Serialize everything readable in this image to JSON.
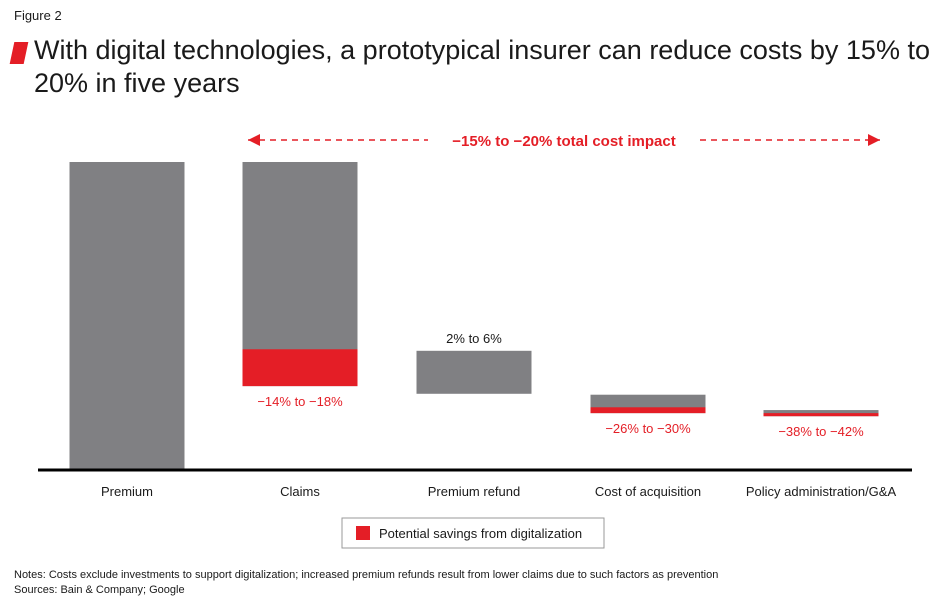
{
  "figure_label": "Figure 2",
  "title": "With digital technologies, a prototypical insurer can reduce costs by 15% to 20% in five years",
  "notes": "Notes: Costs exclude investments to support digitalization; increased premium refunds result from lower claims due to such factors as prevention",
  "sources": "Sources: Bain & Company; Google",
  "colors": {
    "gray": "#808083",
    "red": "#e41e26",
    "axis": "#000000",
    "text": "#1a1a1a"
  },
  "chart_data": {
    "type": "bar",
    "categories": [
      "Premium",
      "Claims",
      "Premium refund",
      "Cost of acquisition",
      "Policy administration/G&A"
    ],
    "baseline": 0,
    "ylim": [
      0,
      100
    ],
    "bars": [
      {
        "category": "Premium",
        "bottom": 0,
        "top": 100,
        "savings": 0,
        "label": "",
        "label_color": "text"
      },
      {
        "category": "Claims",
        "bottom": 27,
        "top": 100,
        "savings": 12,
        "label": "−14% to −18%",
        "label_color": "red"
      },
      {
        "category": "Premium refund",
        "bottom": 24.5,
        "top": 38.5,
        "savings": 0,
        "label": "2% to 6%",
        "label_color": "text"
      },
      {
        "category": "Cost of acquisition",
        "bottom": 18.2,
        "top": 24.2,
        "savings": 1.9,
        "label": "−26% to −30%",
        "label_color": "red"
      },
      {
        "category": "Policy administration/G&A",
        "bottom": 17.2,
        "top": 19.2,
        "savings": 1.0,
        "label": "−38% to −42%",
        "label_color": "red"
      }
    ],
    "annotation": "−15% to −20% total cost impact",
    "legend": {
      "label": "Potential savings from digitalization",
      "placement": "bottom-center"
    }
  }
}
